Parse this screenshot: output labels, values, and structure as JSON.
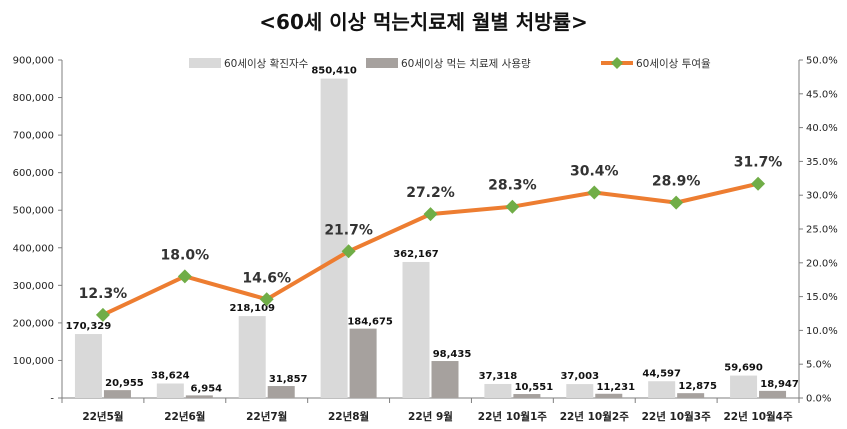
{
  "chart_data": {
    "type": "bar+line",
    "title": "<60세 이상 먹는치료제 월별 처방률>",
    "categories": [
      "22년5월",
      "22년6월",
      "22년7월",
      "22년8월",
      "22년 9월",
      "22년 10월1주",
      "22년 10월2주",
      "22년 10월3주",
      "22년 10월4주"
    ],
    "series": [
      {
        "name": "60세이상 확진자수",
        "type": "bar",
        "axis": "left",
        "color": "#d9d9d9",
        "values": [
          170329,
          38624,
          218109,
          850410,
          362167,
          37318,
          37003,
          44597,
          59690
        ],
        "labels": [
          "170,329",
          "38,624",
          "218,109",
          "850,410",
          "362,167",
          "37,318",
          "37,003",
          "44,597",
          "59,690"
        ]
      },
      {
        "name": "60세이상 먹는 치료제 사용량",
        "type": "bar",
        "axis": "left",
        "color": "#a6a19e",
        "values": [
          20955,
          6954,
          31857,
          184675,
          98435,
          10551,
          11231,
          12875,
          18947
        ],
        "labels": [
          "20,955",
          "6,954",
          "31,857",
          "184,675",
          "98,435",
          "10,551",
          "11,231",
          "12,875",
          "18,947"
        ]
      },
      {
        "name": "60세이상 투여율",
        "type": "line",
        "axis": "right",
        "color": "#ed7d31",
        "marker_color": "#70ad47",
        "values": [
          12.3,
          18.0,
          14.6,
          21.7,
          27.2,
          28.3,
          30.4,
          28.9,
          31.7
        ],
        "labels": [
          "12.3%",
          "18.0%",
          "14.6%",
          "21.7%",
          "27.2%",
          "28.3%",
          "30.4%",
          "28.9%",
          "31.7%"
        ]
      }
    ],
    "y_left": {
      "min": 0,
      "max": 900000,
      "step": 100000,
      "ticks": [
        "-",
        "100,000",
        "200,000",
        "300,000",
        "400,000",
        "500,000",
        "600,000",
        "700,000",
        "800,000",
        "900,000"
      ]
    },
    "y_right": {
      "min": 0,
      "max": 50,
      "step": 5,
      "ticks": [
        "0.0%",
        "5.0%",
        "10.0%",
        "15.0%",
        "20.0%",
        "25.0%",
        "30.0%",
        "35.0%",
        "40.0%",
        "45.0%",
        "50.0%"
      ]
    },
    "legend_position": "top"
  }
}
